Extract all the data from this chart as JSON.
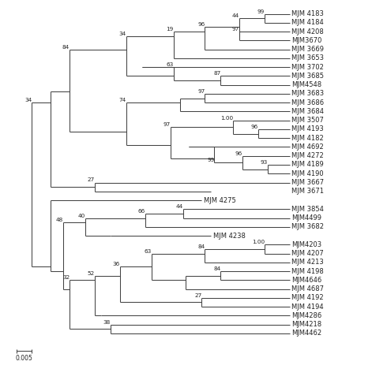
{
  "bg": "#ffffff",
  "lc": "#333333",
  "tc": "#222222",
  "fs": 6.0,
  "bfs": 5.2,
  "lw": 0.75,
  "tips": [
    "MJM 4183",
    "MJM 4184",
    "MJM 4208",
    "MJM3670",
    "MJM 3669",
    "MJM 3653",
    "MJM 3702",
    "MJM 3685",
    "MJM4548",
    "MJM 3683",
    "MJM 3686",
    "MJM 3684",
    "MJM 3507",
    "MJM 4193",
    "MJM 4182",
    "MJM 4692",
    "MJM 4272",
    "MJM 4189",
    "MJM 4190",
    "MJM 3667",
    "MJM 3671",
    "MJM 4275",
    "MJM 3854",
    "MJM4499",
    "MJM 3682",
    "MJM 4238",
    "MJM4203",
    "MJM 4207",
    "MJM 4213",
    "MJM 4198",
    "MJM4646",
    "MJM 4687",
    "MJM 4192",
    "MJM 4194",
    "MJM4286",
    "MJM4218",
    "MJM4462"
  ]
}
